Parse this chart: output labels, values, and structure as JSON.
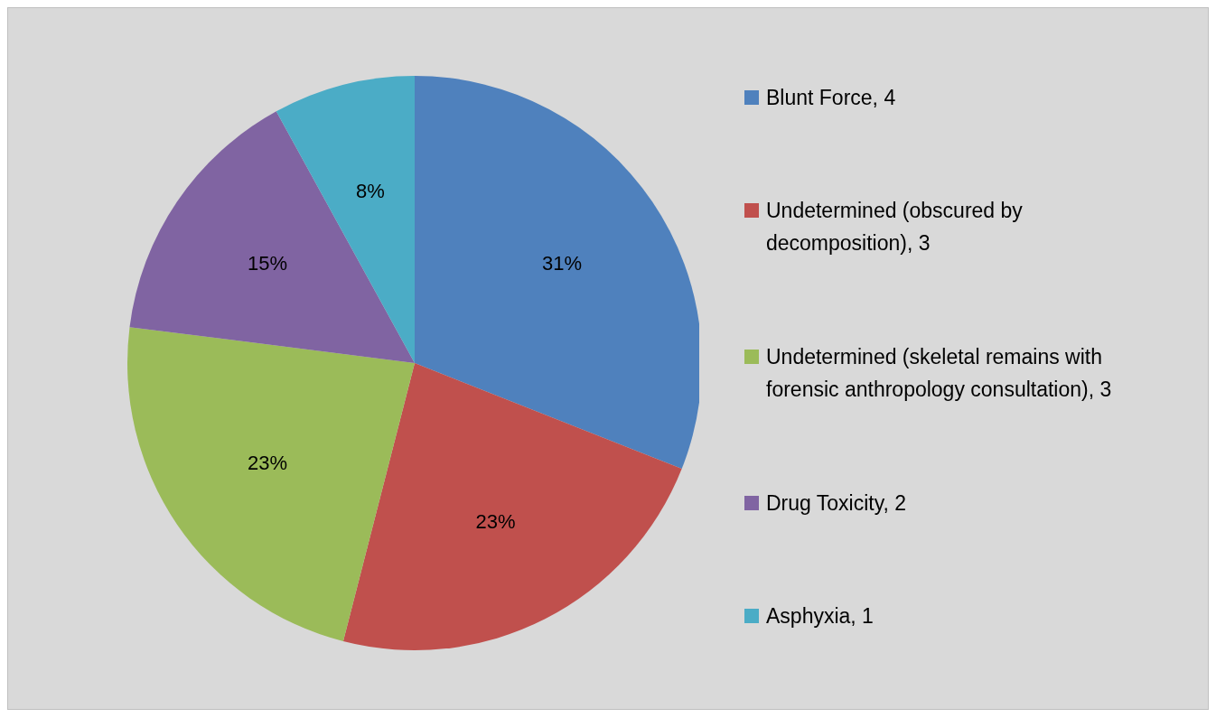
{
  "chart_data": {
    "type": "pie",
    "categories": [
      "Blunt Force, 4",
      "Undetermined (obscured by decomposition), 3",
      "Undetermined (skeletal remains with forensic anthropology consultation), 3",
      "Drug Toxicity, 2",
      "Asphyxia, 1"
    ],
    "values": [
      31,
      23,
      23,
      15,
      8
    ],
    "colors": [
      "#4f81bd",
      "#c0504d",
      "#9bbb59",
      "#8064a2",
      "#4bacc6"
    ],
    "value_labels": [
      "31%",
      "23%",
      "23%",
      "15%",
      "8%"
    ],
    "legend": "right"
  }
}
